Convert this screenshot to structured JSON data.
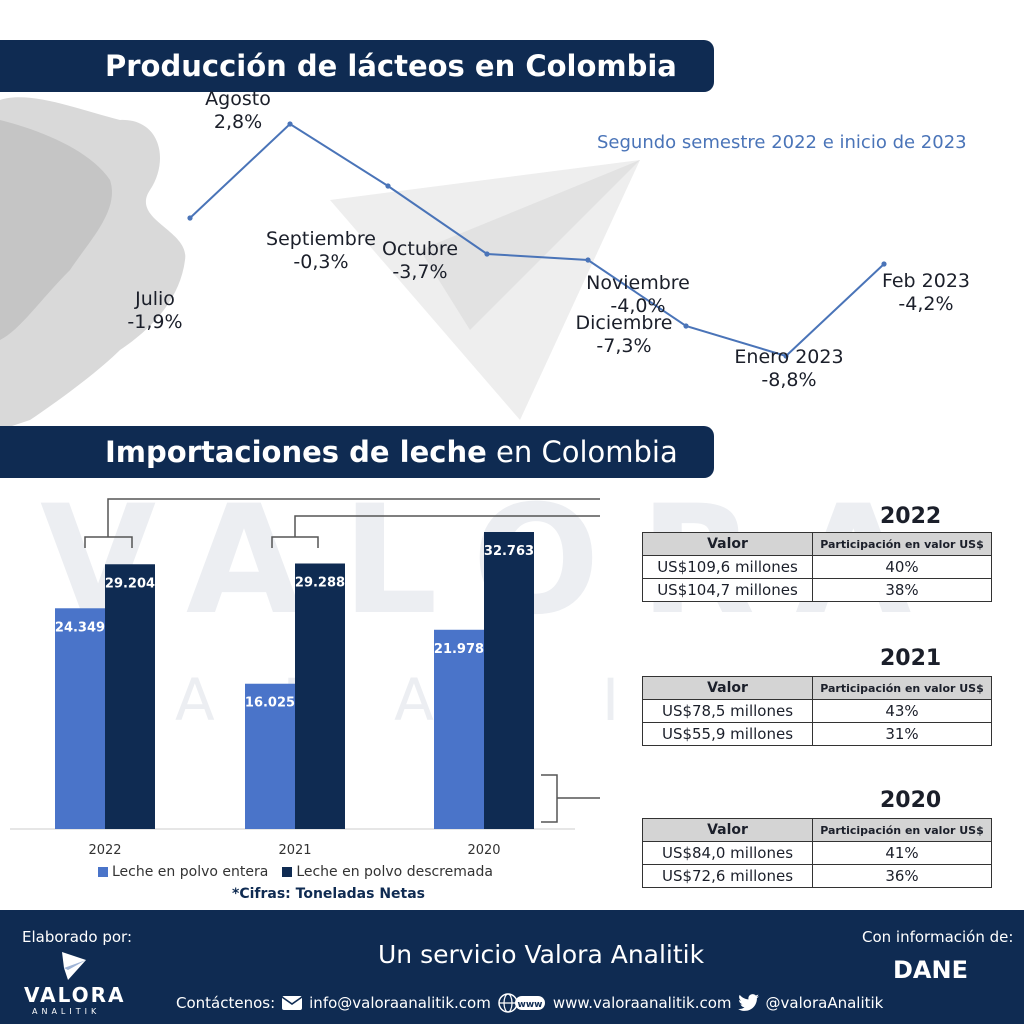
{
  "header": {
    "title1": "Producción de lácteos en Colombia",
    "title2_bold": "Importaciones de leche",
    "title2_rest": " en Colombia"
  },
  "watermark": {
    "big": "VALORA",
    "small": "ANALITIK"
  },
  "chart_data": [
    {
      "type": "line",
      "title": "Producción de lácteos en Colombia",
      "subtitle": "Segundo semestre 2022 e inicio de 2023",
      "x": [
        "Julio",
        "Agosto",
        "Septiembre",
        "Octubre",
        "Noviembre",
        "Diciembre",
        "Enero 2023",
        "Feb 2023"
      ],
      "values": [
        -1.9,
        2.8,
        -0.3,
        -3.7,
        -4.0,
        -7.3,
        -8.8,
        -4.2
      ],
      "value_labels": [
        "-1,9%",
        "2,8%",
        "-0,3%",
        "-3,7%",
        "-4,0%",
        "-7,3%",
        "-8,8%",
        "-4,2%"
      ],
      "color": "#4a74b8"
    },
    {
      "type": "bar",
      "title": "Importaciones de leche en Colombia",
      "categories": [
        "2022",
        "2021",
        "2020"
      ],
      "series": [
        {
          "name": "Leche en polvo entera",
          "values": [
            24349,
            16025,
            21978
          ],
          "labels": [
            "24.349",
            "16.025",
            "21.978"
          ],
          "color": "#4a74c9"
        },
        {
          "name": "Leche en polvo descremada",
          "values": [
            29204,
            29288,
            32763
          ],
          "labels": [
            "29.204",
            "29.288",
            "32.763"
          ],
          "color": "#0f2b52"
        }
      ],
      "ylim": [
        0,
        36000
      ],
      "footnote": "*Cifras: Toneladas Netas"
    }
  ],
  "tables": [
    {
      "year": "2022",
      "header": [
        "Valor",
        "Participación en valor US$"
      ],
      "rows": [
        [
          "US$109,6 millones",
          "40%"
        ],
        [
          "US$104,7 millones",
          "38%"
        ]
      ]
    },
    {
      "year": "2021",
      "header": [
        "Valor",
        "Participación en valor US$"
      ],
      "rows": [
        [
          "US$78,5 millones",
          "43%"
        ],
        [
          "US$55,9 millones",
          "31%"
        ]
      ]
    },
    {
      "year": "2020",
      "header": [
        "Valor",
        "Participación en valor US$"
      ],
      "rows": [
        [
          "US$84,0 millones",
          "41%"
        ],
        [
          "US$72,6 millones",
          "36%"
        ]
      ]
    }
  ],
  "footer": {
    "made_by": "Elaborado por:",
    "logo_text": "VALORA",
    "logo_sub": "ANALITIK",
    "service": "Un servicio Valora Analitik",
    "info_from": "Con información de:",
    "source": "DANE",
    "contact_label": "Contáctenos:",
    "email": "info@valoraanalitik.com",
    "web_badge": "www",
    "website": "www.valoraanalitik.com",
    "twitter": "@valoraAnalitik"
  },
  "colors": {
    "navy": "#0f2b52",
    "blue": "#4a74c9",
    "line": "#4a74b8",
    "gray": "#d4d4d4"
  }
}
